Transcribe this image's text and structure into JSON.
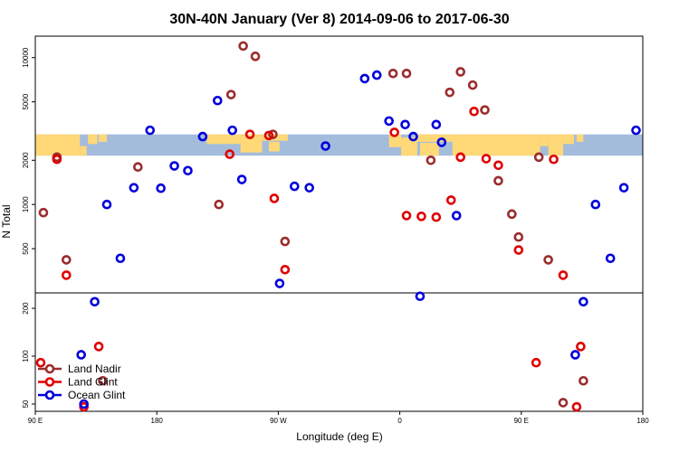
{
  "chart_data": {
    "type": "scatter",
    "title": "30N-40N January (Ver 8)   2014-09-06 to 2017-06-30",
    "xlabel": "Longitude (deg E)",
    "ylabel": "N Total",
    "xlim": [
      90,
      540
    ],
    "x_ticks": [
      {
        "value": 90,
        "label": "90 E"
      },
      {
        "value": 180,
        "label": "180"
      },
      {
        "value": 270,
        "label": "90 W"
      },
      {
        "value": 360,
        "label": "0"
      },
      {
        "value": 450,
        "label": "90 E"
      },
      {
        "value": 540,
        "label": "180"
      }
    ],
    "upper_panel": {
      "scale": "log",
      "ylim": [
        250,
        14000
      ],
      "y_ticks": [
        {
          "value": 500,
          "label": "500"
        },
        {
          "value": 1000,
          "label": "1000"
        },
        {
          "value": 2000,
          "label": "2000"
        },
        {
          "value": 5000,
          "label": "5000"
        },
        {
          "value": 10000,
          "label": "10000"
        }
      ],
      "map_band": {
        "ymin": 2150,
        "ymax": 3000,
        "ocean_color": "#a3bcdc",
        "land_color": "#ffd878"
      }
    },
    "lower_panel": {
      "scale": "log",
      "ylim": [
        45,
        250
      ],
      "y_ticks": [
        {
          "value": 50,
          "label": "50"
        },
        {
          "value": 100,
          "label": "100"
        },
        {
          "value": 200,
          "label": "200"
        }
      ]
    },
    "legend_position": "bottom-left",
    "series": [
      {
        "name": "Land Nadir",
        "color": "#9b2d2d",
        "points": [
          [
            96,
            880
          ],
          [
            106,
            2100
          ],
          [
            113,
            420
          ],
          [
            140,
            70
          ],
          [
            166,
            1800
          ],
          [
            226,
            1000
          ],
          [
            235,
            5600
          ],
          [
            244,
            12000
          ],
          [
            253,
            10200
          ],
          [
            266,
            3000
          ],
          [
            275,
            560
          ],
          [
            355,
            7800
          ],
          [
            365,
            7800
          ],
          [
            383,
            2000
          ],
          [
            397,
            5800
          ],
          [
            405,
            8000
          ],
          [
            414,
            6500
          ],
          [
            423,
            4400
          ],
          [
            433,
            1450
          ],
          [
            443,
            860
          ],
          [
            448,
            600
          ],
          [
            463,
            2100
          ],
          [
            470,
            420
          ],
          [
            481,
            51
          ],
          [
            496,
            70
          ]
        ]
      },
      {
        "name": "Land Glint",
        "color": "#e00000",
        "points": [
          [
            94,
            91
          ],
          [
            106,
            2030
          ],
          [
            113,
            330
          ],
          [
            126,
            48
          ],
          [
            137,
            115
          ],
          [
            234,
            2200
          ],
          [
            249,
            3000
          ],
          [
            263,
            2950
          ],
          [
            267,
            1100
          ],
          [
            275,
            360
          ],
          [
            356,
            3100
          ],
          [
            365,
            840
          ],
          [
            376,
            830
          ],
          [
            387,
            820
          ],
          [
            398,
            1070
          ],
          [
            405,
            2100
          ],
          [
            415,
            4300
          ],
          [
            424,
            2050
          ],
          [
            433,
            1850
          ],
          [
            448,
            490
          ],
          [
            461,
            91
          ],
          [
            474,
            2030
          ],
          [
            481,
            330
          ],
          [
            491,
            48
          ],
          [
            494,
            115
          ]
        ]
      },
      {
        "name": "Ocean Glint",
        "color": "#0000dd",
        "points": [
          [
            124,
            102
          ],
          [
            126,
            50
          ],
          [
            134,
            220
          ],
          [
            143,
            1000
          ],
          [
            153,
            430
          ],
          [
            163,
            1300
          ],
          [
            175,
            3200
          ],
          [
            183,
            1290
          ],
          [
            193,
            1830
          ],
          [
            203,
            1700
          ],
          [
            214,
            2900
          ],
          [
            225,
            5100
          ],
          [
            236,
            3200
          ],
          [
            243,
            1480
          ],
          [
            271,
            290
          ],
          [
            282,
            1330
          ],
          [
            293,
            1300
          ],
          [
            305,
            2500
          ],
          [
            334,
            7200
          ],
          [
            343,
            7600
          ],
          [
            352,
            3700
          ],
          [
            364,
            3500
          ],
          [
            370,
            2900
          ],
          [
            375,
            238
          ],
          [
            387,
            3500
          ],
          [
            391,
            2650
          ],
          [
            402,
            840
          ],
          [
            490,
            102
          ],
          [
            496,
            220
          ],
          [
            505,
            1000
          ],
          [
            516,
            430
          ],
          [
            526,
            1300
          ],
          [
            535,
            3200
          ]
        ]
      }
    ]
  }
}
